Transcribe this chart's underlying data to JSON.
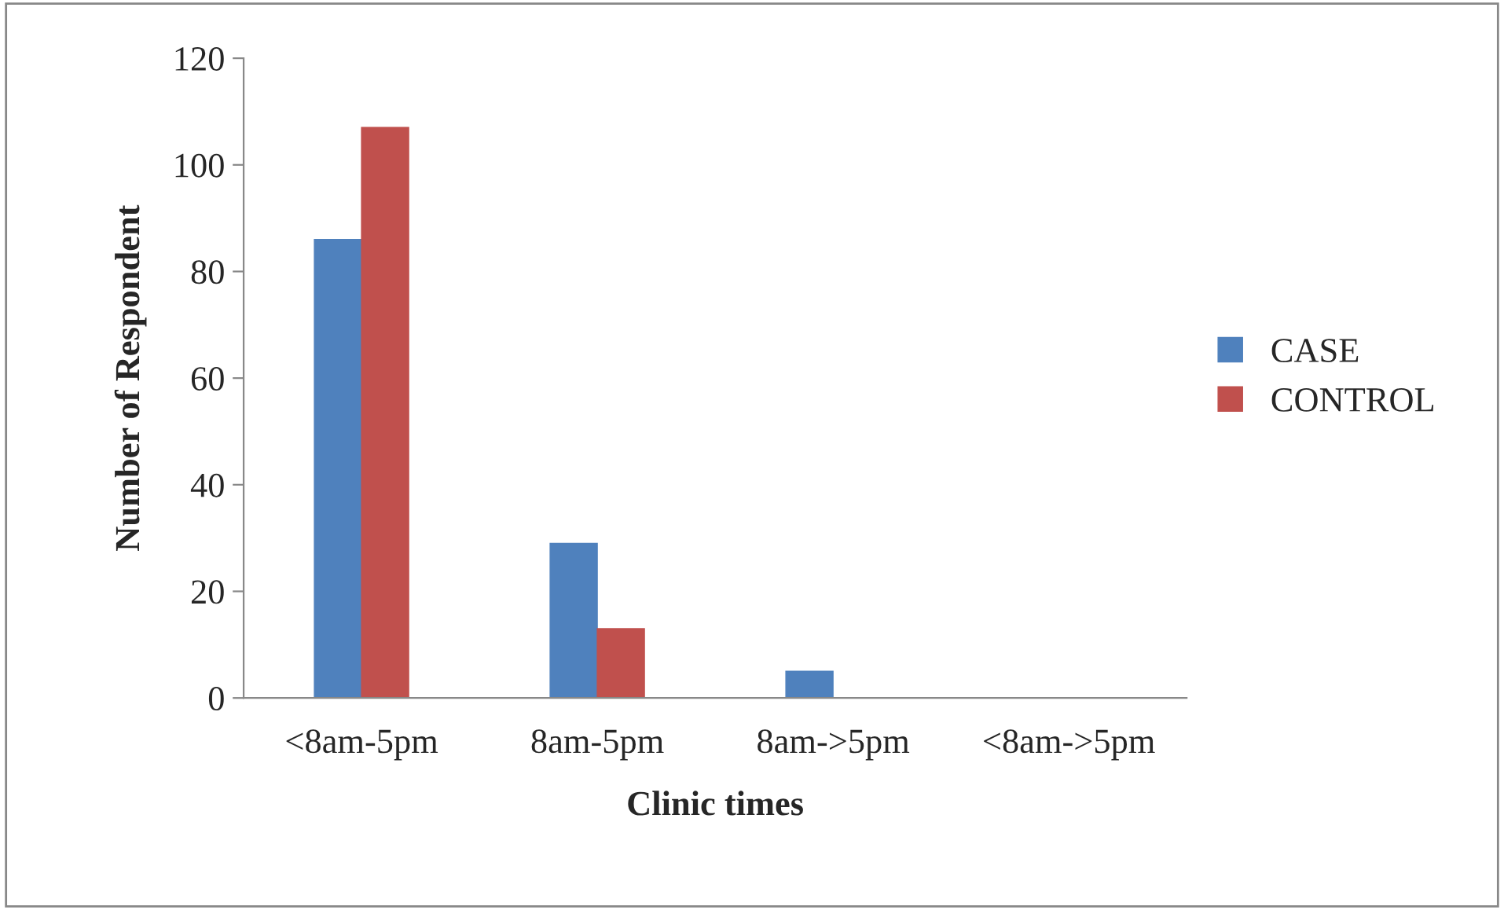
{
  "chart_data": {
    "type": "bar",
    "xlabel": "Clinic times",
    "ylabel": "Number of Respondent",
    "categories": [
      "<8am-5pm",
      "8am-5pm",
      "8am->5pm",
      "<8am->5pm"
    ],
    "series": [
      {
        "name": "CASE",
        "color": "#4f81bd",
        "values": [
          86,
          29,
          5,
          0
        ]
      },
      {
        "name": "CONTROL",
        "color": "#c0504d",
        "values": [
          107,
          13,
          0,
          0
        ]
      }
    ],
    "ylim": [
      0,
      120
    ],
    "yticks": [
      0,
      20,
      40,
      60,
      80,
      100,
      120
    ],
    "grid": false,
    "legend": "right"
  }
}
